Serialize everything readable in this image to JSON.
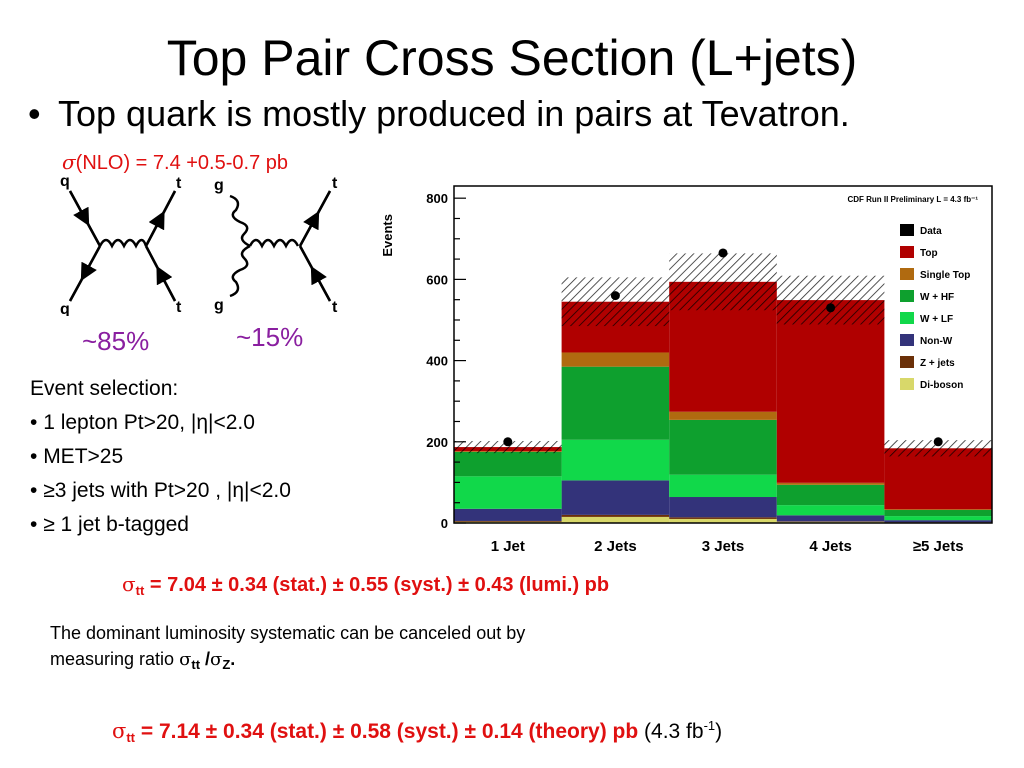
{
  "slide": {
    "title": "Top Pair Cross Section (L+jets)",
    "bullet": "Top quark is mostly produced in pairs at Tevatron.",
    "nlo_sigma": "σ",
    "nlo_text": "(NLO) = 7.4 +0.5-0.7 pb",
    "diagram_labels": {
      "q": "q",
      "t": "t",
      "g": "g"
    },
    "pct_qq": "~85%",
    "pct_gg": "~15%",
    "event_selection": {
      "heading": "Event selection:",
      "items": [
        "1 lepton Pt>20, |η|<2.0",
        "MET>25",
        "≥3 jets with Pt>20 , |η|<2.0",
        "≥ 1 jet b-tagged"
      ]
    },
    "xsec1": {
      "sigma": "σ",
      "sub": "tt",
      "text": " = 7.04 ± 0.34 (stat.) ± 0.55 (syst.) ± 0.43 (lumi.) pb"
    },
    "lumi_note": {
      "line1": "The dominant luminosity systematic can be canceled out by",
      "line2_prefix": "measuring ratio ",
      "sig1": "σ",
      "sub1": "tt",
      "slash": " /",
      "sig2": "σ",
      "sub2": "Z",
      "end": "."
    },
    "xsec2": {
      "sigma": "σ",
      "sub": "tt",
      "text": " = 7.14 ± 0.34 (stat.) ± 0.58 (syst.) ± 0.14 (theory) pb",
      "lumi": " (4.3 fb",
      "lumi_sup": "-1",
      "lumi_end": ")"
    }
  },
  "chart_data": {
    "type": "bar",
    "stacked": true,
    "annotation": "CDF Run II Preliminary L = 4.3 fb⁻¹",
    "ylabel": "Events",
    "xlabel": "",
    "categories": [
      "1 Jet",
      "2 Jets",
      "3 Jets",
      "4 Jets",
      "≥5 Jets"
    ],
    "ylim": [
      0,
      800
    ],
    "yticks": [
      0,
      200,
      400,
      600,
      800
    ],
    "legend_position": "top-right",
    "series": [
      {
        "name": "Di-boson",
        "color": "#d8d86a",
        "values": [
          3,
          15,
          10,
          3,
          1
        ]
      },
      {
        "name": "Z + jets",
        "color": "#6b3008",
        "values": [
          2,
          5,
          4,
          1,
          1
        ]
      },
      {
        "name": "Non-W",
        "color": "#33337a",
        "values": [
          30,
          85,
          50,
          15,
          5
        ]
      },
      {
        "name": "W + LF",
        "color": "#11d84a",
        "values": [
          80,
          100,
          55,
          25,
          10
        ]
      },
      {
        "name": "W + HF",
        "color": "#0ea02e",
        "values": [
          60,
          180,
          135,
          50,
          15
        ]
      },
      {
        "name": "Single Top",
        "color": "#b06a10",
        "values": [
          2,
          35,
          20,
          5,
          2
        ]
      },
      {
        "name": "Top",
        "color": "#b00000",
        "values": [
          10,
          125,
          320,
          450,
          150
        ]
      }
    ],
    "uncertainty": [
      15,
      60,
      70,
      60,
      20
    ],
    "data": [
      {
        "name": "Data",
        "values": [
          200,
          560,
          665,
          530,
          200
        ]
      }
    ]
  }
}
